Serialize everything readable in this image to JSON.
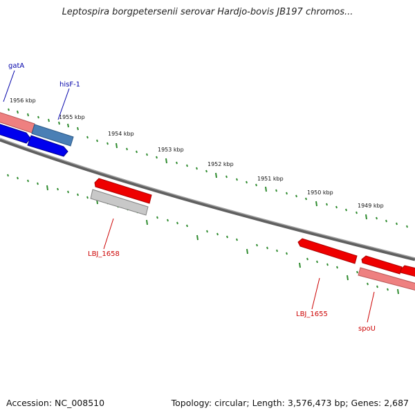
{
  "title": "Leptospira borgpetersenii serovar Hardjo-bovis JB197 chromos...",
  "footer": {
    "accession": "Accession: NC_008510",
    "summary": "Topology: circular; Length: 3,576,473 bp; Genes: 2,687"
  },
  "ruler_labels": [
    "1956 kbp",
    "1955 kbp",
    "1954 kbp",
    "1953 kbp",
    "1952 kbp",
    "1951 kbp",
    "1950 kbp",
    "1949 kbp"
  ],
  "gene_labels": {
    "gatA": "gatA",
    "hisF": "hisF-1",
    "lbj1658": "LBJ_1658",
    "lbj1655": "LBJ_1655",
    "spoU": "spoU"
  },
  "colors": {
    "forward_label": "#0000aa",
    "reverse_label": "#cc0000",
    "tick": "#2e8b2e",
    "backbone": "#808080",
    "blue_gene": "#0000ee",
    "steel_gene": "#4a7fb5",
    "red_gene": "#ee0000",
    "pink_gene": "#ee8080",
    "grey_gene": "#c8c8c8"
  }
}
